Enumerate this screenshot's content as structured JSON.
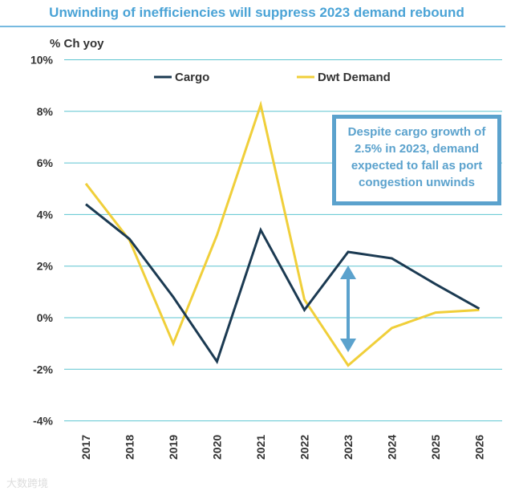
{
  "chart_data": {
    "type": "line",
    "title": "Unwinding of inefficiencies will suppress 2023 demand rebound",
    "ylabel": "% Ch yoy",
    "xlabel": "",
    "ylim": [
      -4,
      10
    ],
    "yticks": [
      -4,
      -2,
      0,
      2,
      4,
      6,
      8,
      10
    ],
    "ytick_labels": [
      "-4%",
      "-2%",
      "0%",
      "2%",
      "4%",
      "6%",
      "8%",
      "10%"
    ],
    "categories": [
      "2017",
      "2018",
      "2019",
      "2020",
      "2021",
      "2022",
      "2023",
      "2024",
      "2025",
      "2026"
    ],
    "series": [
      {
        "name": "Cargo",
        "color": "#1b3a52",
        "values": [
          4.4,
          3.05,
          0.8,
          -1.7,
          3.4,
          0.3,
          2.55,
          2.3,
          1.3,
          0.35
        ]
      },
      {
        "name": "Dwt Demand",
        "color": "#f0cf3a",
        "values": [
          5.2,
          3.0,
          -1.0,
          3.2,
          8.25,
          0.7,
          -1.85,
          -0.4,
          0.2,
          0.3
        ]
      }
    ],
    "grid": true,
    "legend": "top",
    "annotation": "Despite cargo growth of 2.5% in 2023, demand expected to fall as port congestion unwinds",
    "arrow_year": "2023"
  },
  "watermark": "大数跨境"
}
